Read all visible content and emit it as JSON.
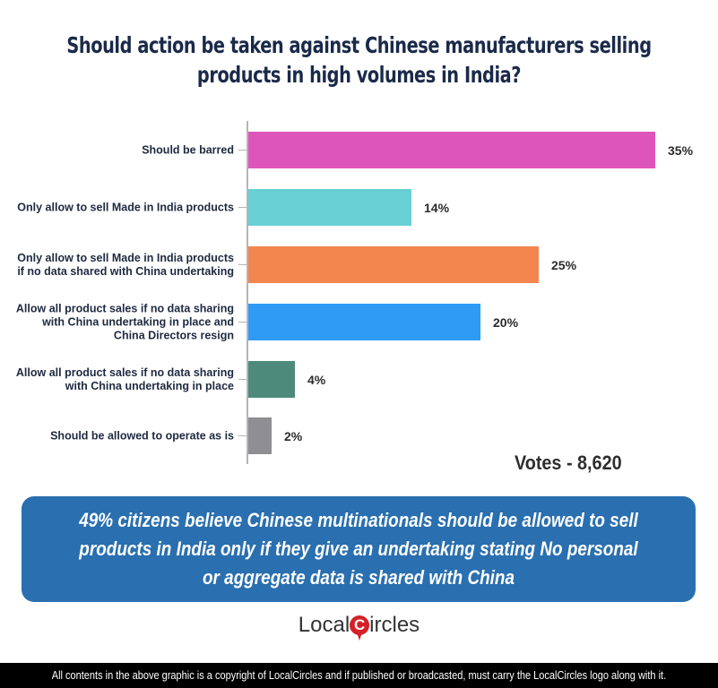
{
  "title": "Should action be taken against Chinese manufacturers selling products in high volumes in India?",
  "chart_data": {
    "type": "bar",
    "orientation": "horizontal",
    "title": "Should action be taken against Chinese manufacturers selling products in high volumes in India?",
    "categories": [
      "Should be barred",
      "Only allow to sell Made in India products",
      "Only allow to sell Made in India products if no data shared with China undertaking",
      "Allow all product sales if no data sharing with China undertaking in place and China Directors resign",
      "Allow all product sales if no data sharing with China undertaking in place",
      "Should be allowed to operate as is"
    ],
    "values": [
      35,
      14,
      25,
      20,
      4,
      2
    ],
    "value_labels": [
      "35%",
      "14%",
      "25%",
      "20%",
      "4%",
      "2%"
    ],
    "colors": [
      "#de55b9",
      "#67d0d4",
      "#f3864f",
      "#2f9bf5",
      "#4e8a7b",
      "#8f8f93"
    ],
    "xlabel": "",
    "ylabel": "",
    "grid": false,
    "legend": "none"
  },
  "rows": [
    {
      "label": "Should be barred",
      "value": "35%",
      "pct": 35,
      "color": "#de55b9"
    },
    {
      "label": "Only allow to sell Made in India products",
      "value": "14%",
      "pct": 14,
      "color": "#67d0d4"
    },
    {
      "label": "Only allow to sell Made in India products\nif no data shared with China undertaking",
      "value": "25%",
      "pct": 25,
      "color": "#f3864f"
    },
    {
      "label": "Allow all product sales if no data sharing\nwith China undertaking in place and\nChina Directors resign",
      "value": "20%",
      "pct": 20,
      "color": "#2f9bf5"
    },
    {
      "label": "Allow all product sales if no data sharing\nwith China undertaking in place",
      "value": "4%",
      "pct": 4,
      "color": "#4e8a7b"
    },
    {
      "label": "Should be allowed to operate as is",
      "value": "2%",
      "pct": 2,
      "color": "#8f8f93"
    }
  ],
  "votes": "Votes - 8,620",
  "callout": "49% citizens believe Chinese multinationals should be allowed to sell products in India only if they give an undertaking stating No personal or aggregate data is shared with China",
  "logo": {
    "left": "Local",
    "mark": "C",
    "right": "ircles"
  },
  "footer": "All contents in the above graphic is a copyright of LocalCircles and if published or broadcasted, must carry the LocalCircles logo along with it."
}
